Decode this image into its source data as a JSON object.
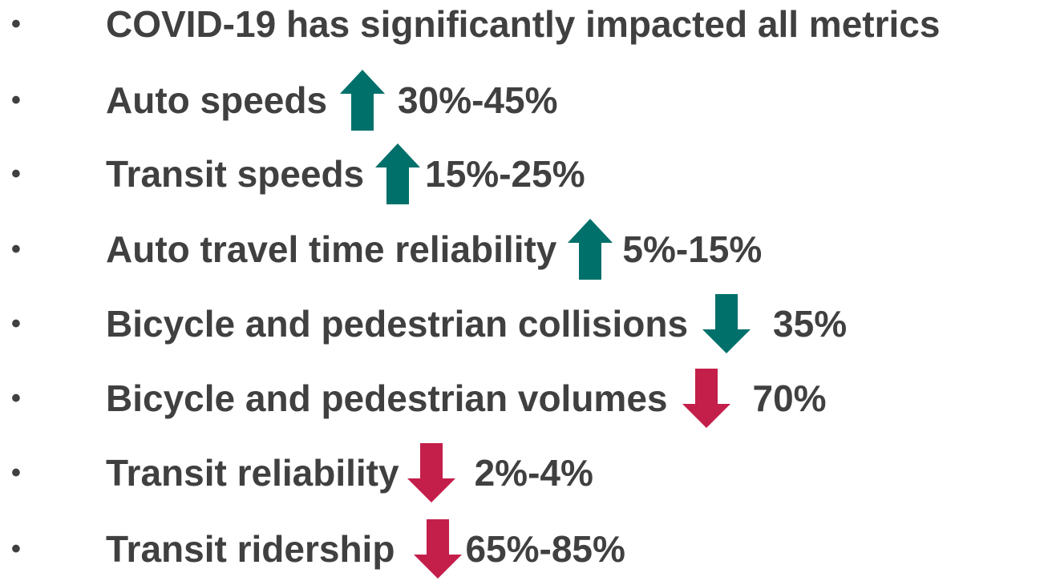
{
  "items": [
    {
      "text": "COVID-19 has significantly impacted all metrics"
    },
    {
      "text": "Auto speeds",
      "change": "30%-45%"
    },
    {
      "text": "Transit speeds",
      "change": "15%-25%"
    },
    {
      "text": "Auto travel time reliability",
      "change": "5%-15%"
    },
    {
      "text": "Bicycle and pedestrian collisions",
      "change": "35%"
    },
    {
      "text": "Bicycle and pedestrian volumes",
      "change": "70%"
    },
    {
      "text": "Transit reliability",
      "change": "2%-4%"
    },
    {
      "text": "Transit ridership",
      "change": "65%-85%"
    }
  ]
}
